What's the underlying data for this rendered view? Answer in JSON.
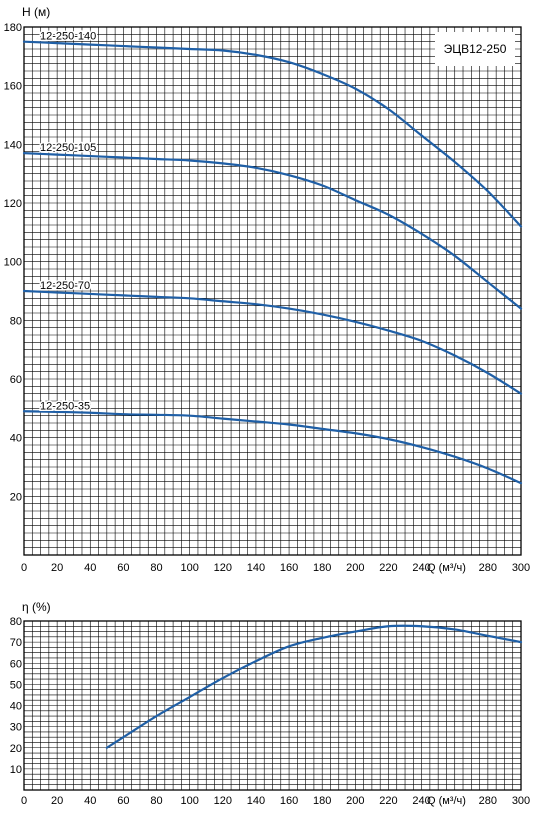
{
  "chart_data": [
    {
      "type": "line",
      "title": "ЭЦВ12-250",
      "xlabel": "Q (м³/ч)",
      "ylabel": "H (м)",
      "xlim": [
        0,
        300
      ],
      "ylim": [
        0,
        180
      ],
      "xticks": [
        0,
        20,
        40,
        60,
        80,
        100,
        120,
        140,
        160,
        180,
        200,
        220,
        240,
        260,
        280,
        300
      ],
      "yticks": [
        20,
        40,
        60,
        80,
        100,
        120,
        140,
        160,
        180
      ],
      "grid": true,
      "series": [
        {
          "name": "12-250-140",
          "x": [
            0,
            20,
            40,
            60,
            80,
            100,
            120,
            140,
            160,
            180,
            200,
            220,
            240,
            260,
            280,
            300
          ],
          "y": [
            175,
            174.5,
            174,
            173.5,
            173,
            172.5,
            172,
            170.5,
            168,
            164,
            159,
            152,
            143,
            134,
            124,
            112
          ]
        },
        {
          "name": "12-250-105",
          "x": [
            0,
            20,
            40,
            60,
            80,
            100,
            120,
            140,
            160,
            180,
            200,
            220,
            240,
            260,
            280,
            300
          ],
          "y": [
            137,
            136.5,
            136,
            135.5,
            135,
            134.5,
            133.5,
            132,
            129.5,
            126,
            121,
            116,
            109.5,
            102,
            93,
            84
          ]
        },
        {
          "name": "12-250-70",
          "x": [
            0,
            20,
            40,
            60,
            80,
            100,
            120,
            140,
            160,
            180,
            200,
            220,
            240,
            260,
            280,
            300
          ],
          "y": [
            90,
            89.5,
            89,
            88.5,
            88,
            87.5,
            86.5,
            85.5,
            84,
            82,
            79.5,
            76.5,
            73,
            68,
            62,
            55
          ]
        },
        {
          "name": "12-250-35",
          "x": [
            0,
            20,
            40,
            60,
            80,
            100,
            120,
            140,
            160,
            180,
            200,
            220,
            240,
            260,
            280,
            300
          ],
          "y": [
            49,
            48.8,
            48.5,
            48,
            47.8,
            47.5,
            46.5,
            45.5,
            44.5,
            43,
            41.5,
            39.5,
            36.8,
            33.5,
            29.5,
            24.5
          ]
        }
      ]
    },
    {
      "type": "line",
      "xlabel": "Q (м³/ч)",
      "ylabel": "η (%)",
      "xlim": [
        0,
        300
      ],
      "ylim": [
        0,
        80
      ],
      "xticks": [
        0,
        20,
        40,
        60,
        80,
        100,
        120,
        140,
        160,
        180,
        200,
        220,
        240,
        260,
        280,
        300
      ],
      "yticks": [
        10,
        20,
        30,
        40,
        50,
        60,
        70,
        80
      ],
      "grid": true,
      "series": [
        {
          "x": [
            50,
            60,
            80,
            100,
            120,
            140,
            160,
            180,
            200,
            220,
            240,
            260,
            280,
            300
          ],
          "y": [
            20,
            25,
            35,
            44,
            53,
            61,
            68,
            72,
            75,
            77.5,
            77.5,
            76,
            73,
            70
          ]
        }
      ]
    }
  ]
}
